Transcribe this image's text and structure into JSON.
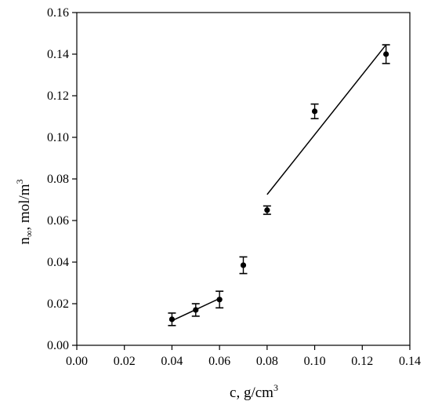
{
  "chart_data": {
    "type": "scatter",
    "x_axis": {
      "label_main": "c, g/cm",
      "label_sup": "3",
      "range": [
        0,
        0.14
      ],
      "ticks": [
        "0.00",
        "0.02",
        "0.04",
        "0.06",
        "0.08",
        "0.10",
        "0.12",
        "0.14"
      ],
      "tick_values": [
        0,
        0.02,
        0.04,
        0.06,
        0.08,
        0.1,
        0.12,
        0.14
      ]
    },
    "y_axis": {
      "label_main": "n",
      "label_sub": "∞",
      "label_rest": ", mol/m",
      "label_sup": "3",
      "range": [
        0,
        0.16
      ],
      "ticks": [
        "0.00",
        "0.02",
        "0.04",
        "0.06",
        "0.08",
        "0.10",
        "0.12",
        "0.14",
        "0.16"
      ],
      "tick_values": [
        0,
        0.02,
        0.04,
        0.06,
        0.08,
        0.1,
        0.12,
        0.14,
        0.16
      ]
    },
    "points": [
      {
        "x": 0.04,
        "y": 0.0125,
        "err": 0.003
      },
      {
        "x": 0.05,
        "y": 0.017,
        "err": 0.003
      },
      {
        "x": 0.06,
        "y": 0.022,
        "err": 0.004
      },
      {
        "x": 0.07,
        "y": 0.0385,
        "err": 0.004
      },
      {
        "x": 0.08,
        "y": 0.065,
        "err": 0.002
      },
      {
        "x": 0.1,
        "y": 0.1125,
        "err": 0.0035
      },
      {
        "x": 0.13,
        "y": 0.14,
        "err": 0.0045
      }
    ],
    "fit_lines": [
      {
        "x": [
          0.04,
          0.06
        ],
        "y": [
          0.0118,
          0.0225
        ]
      },
      {
        "x": [
          0.08,
          0.13
        ],
        "y": [
          0.0725,
          0.1445
        ]
      }
    ],
    "grid": false,
    "legend": "none",
    "colors": {
      "marker": "#000000",
      "line": "#000000",
      "axis": "#000000"
    }
  }
}
